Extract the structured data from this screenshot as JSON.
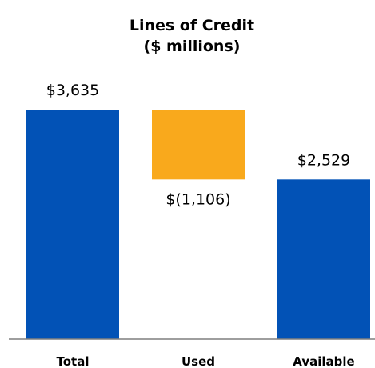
{
  "chart_data": {
    "type": "bar",
    "title": "Lines of Credit",
    "subtitle": "($ millions)",
    "categories": [
      "Total",
      "Used",
      "Available"
    ],
    "values": [
      3635,
      -1106,
      2529
    ],
    "value_labels": [
      "$3,635",
      "$(1,106)",
      "$2,529"
    ],
    "waterfall": true,
    "colors": [
      "#0252b6",
      "#f9a91c",
      "#0252b6"
    ],
    "axis_color": "#7f7f7f",
    "ylim": [
      0,
      3635
    ],
    "grid": false,
    "legend": "none",
    "xlabel": "",
    "ylabel": ""
  }
}
